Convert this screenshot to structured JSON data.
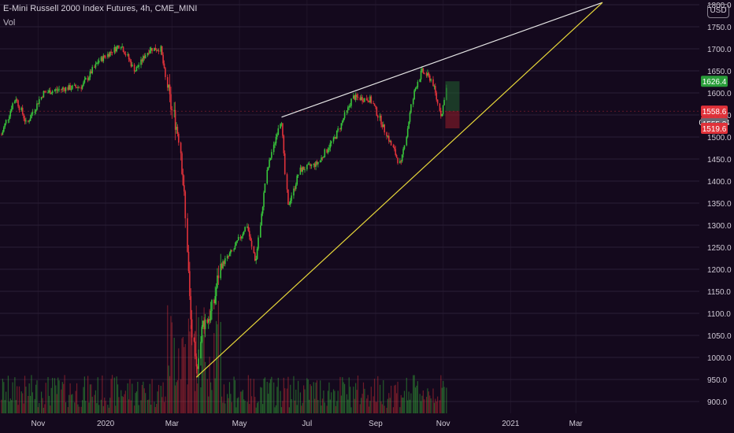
{
  "header": {
    "title": "E-Mini Russell 2000 Index Futures, 4h, CME_MINI",
    "volume_label": "Vol",
    "currency": "USD"
  },
  "colors": {
    "background": "#14091d",
    "up": "#38c43b",
    "down": "#e0323a",
    "upper_trendline": "#e6e6e6",
    "lower_trendline": "#e8d83a",
    "grid": "#2a1f36",
    "label_text": "#d0cad6"
  },
  "chart_data": {
    "type": "candlestick",
    "title": "E-Mini Russell 2000 Index Futures, 4h, CME_MINI",
    "price_axis": {
      "ticks": [
        "1800.0",
        "1750.0",
        "1700.0",
        "1650.0",
        "1600.0",
        "1550.0",
        "1500.0",
        "1450.0",
        "1400.0",
        "1350.0",
        "1300.0",
        "1250.0",
        "1200.0",
        "1150.0",
        "1100.0",
        "1050.0",
        "1000.0",
        "950.0",
        "900.0"
      ],
      "ylim": [
        885,
        1805
      ]
    },
    "time_axis": {
      "ticks": [
        "Nov",
        "2020",
        "Mar",
        "May",
        "Jul",
        "Sep",
        "Nov",
        "2021",
        "Mar"
      ]
    },
    "price_path": [
      {
        "date": "2019-09-29",
        "price": 1505
      },
      {
        "date": "2019-10-12",
        "price": 1590
      },
      {
        "date": "2019-10-22",
        "price": 1530
      },
      {
        "date": "2019-11-06",
        "price": 1600
      },
      {
        "date": "2019-11-25",
        "price": 1610
      },
      {
        "date": "2019-12-11",
        "price": 1615
      },
      {
        "date": "2019-12-26",
        "price": 1672
      },
      {
        "date": "2020-01-15",
        "price": 1710
      },
      {
        "date": "2020-01-28",
        "price": 1650
      },
      {
        "date": "2020-02-10",
        "price": 1700
      },
      {
        "date": "2020-02-20",
        "price": 1700
      },
      {
        "date": "2020-02-29",
        "price": 1575
      },
      {
        "date": "2020-03-08",
        "price": 1500
      },
      {
        "date": "2020-03-13",
        "price": 1350
      },
      {
        "date": "2020-03-18",
        "price": 1100
      },
      {
        "date": "2020-03-23",
        "price": 960
      },
      {
        "date": "2020-03-29",
        "price": 1075
      },
      {
        "date": "2020-04-06",
        "price": 1100
      },
      {
        "date": "2020-04-14",
        "price": 1205
      },
      {
        "date": "2020-04-26",
        "price": 1245
      },
      {
        "date": "2020-05-08",
        "price": 1300
      },
      {
        "date": "2020-05-16",
        "price": 1215
      },
      {
        "date": "2020-05-26",
        "price": 1420
      },
      {
        "date": "2020-06-08",
        "price": 1545
      },
      {
        "date": "2020-06-14",
        "price": 1340
      },
      {
        "date": "2020-06-25",
        "price": 1425
      },
      {
        "date": "2020-07-11",
        "price": 1440
      },
      {
        "date": "2020-07-27",
        "price": 1500
      },
      {
        "date": "2020-08-12",
        "price": 1590
      },
      {
        "date": "2020-08-28",
        "price": 1585
      },
      {
        "date": "2020-09-08",
        "price": 1525
      },
      {
        "date": "2020-09-24",
        "price": 1435
      },
      {
        "date": "2020-10-06",
        "price": 1600
      },
      {
        "date": "2020-10-13",
        "price": 1650
      },
      {
        "date": "2020-10-22",
        "price": 1630
      },
      {
        "date": "2020-10-31",
        "price": 1545
      },
      {
        "date": "2020-11-05",
        "price": 1626
      }
    ],
    "trendlines": [
      {
        "from": {
          "date": "2020-06-08",
          "price": 1545
        },
        "to": {
          "date": "2021-03-25",
          "price": 1805
        },
        "color": "#e6e6e6"
      },
      {
        "from": {
          "date": "2020-03-23",
          "price": 955
        },
        "to": {
          "date": "2021-03-25",
          "price": 1805
        },
        "color": "#e8d83a"
      }
    ],
    "position_box": {
      "entry": 1558.6,
      "target": 1626.4,
      "stop": 1519.6
    },
    "price_labels": [
      {
        "value": "1626.4",
        "color": "#2a9d3a"
      },
      {
        "value": "1558.6",
        "color": "#e0323a"
      },
      {
        "value": "03:18:34",
        "color": "#e0323a"
      },
      {
        "value": "1555.2",
        "color": "#6b6670"
      },
      {
        "value": "1519.6",
        "color": "#e0323a"
      }
    ],
    "volume": {
      "label": "Vol"
    }
  }
}
